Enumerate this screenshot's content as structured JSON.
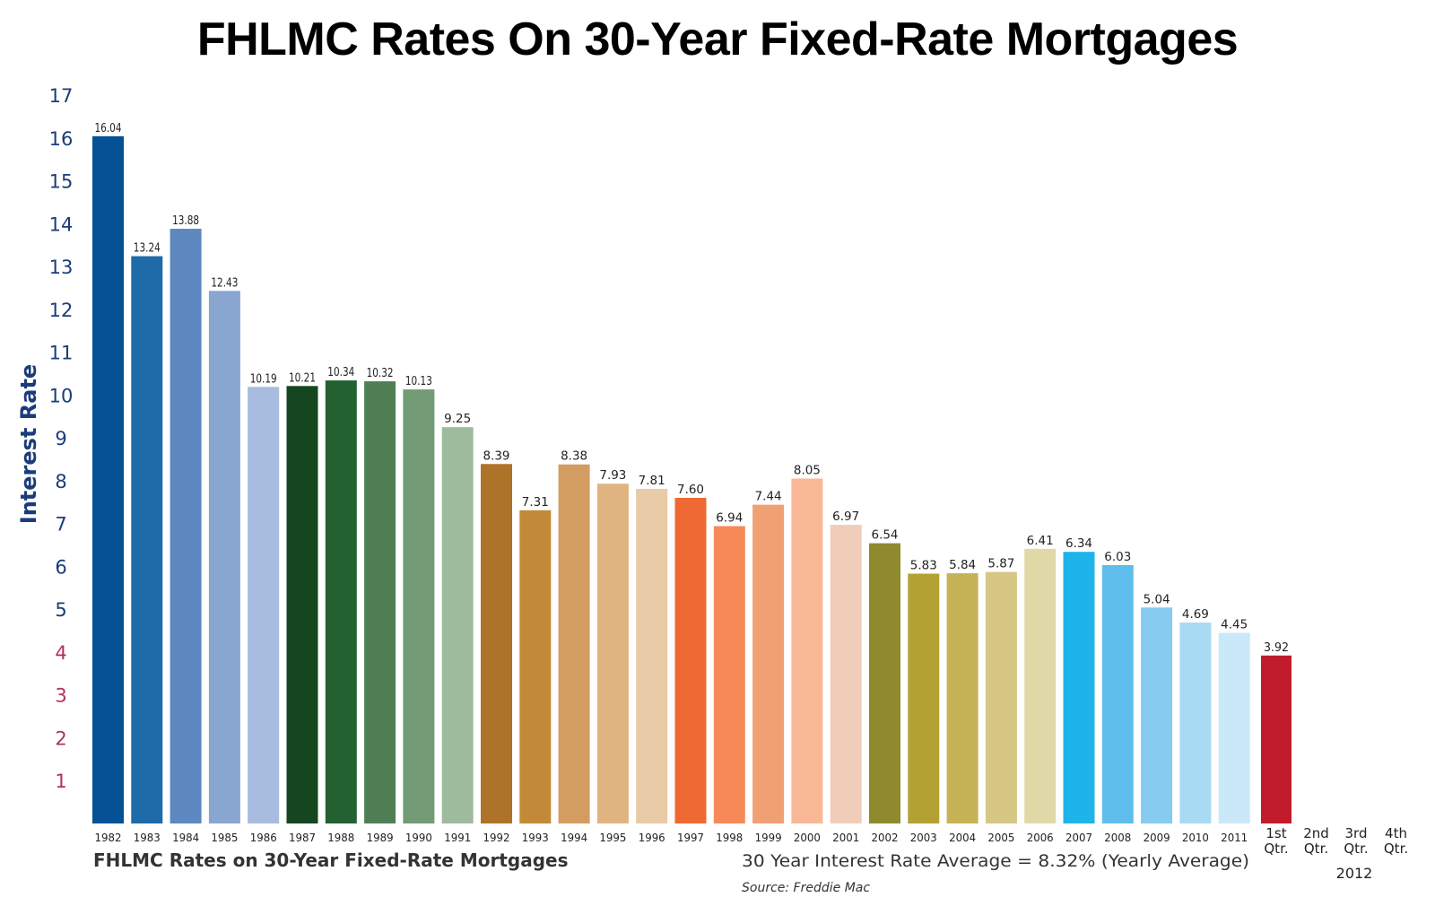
{
  "chart_data": {
    "type": "bar",
    "title": "FHLMC Rates On 30-Year Fixed-Rate Mortgages",
    "subtitle": "FHLMC Rates on 30-Year Fixed-Rate Mortgages",
    "ylabel": "Interest Rate",
    "xlabel": "",
    "ylim": [
      0,
      17
    ],
    "yticks": [
      1,
      2,
      3,
      4,
      5,
      6,
      7,
      8,
      9,
      10,
      11,
      12,
      13,
      14,
      15,
      16,
      17
    ],
    "categories": [
      "1982",
      "1983",
      "1984",
      "1985",
      "1986",
      "1987",
      "1988",
      "1989",
      "1990",
      "1991",
      "1992",
      "1993",
      "1994",
      "1995",
      "1996",
      "1997",
      "1998",
      "1999",
      "2000",
      "2001",
      "2002",
      "2003",
      "2004",
      "2005",
      "2006",
      "2007",
      "2008",
      "2009",
      "2010",
      "2011"
    ],
    "values": [
      16.04,
      13.24,
      13.88,
      12.43,
      10.19,
      10.21,
      10.34,
      10.32,
      10.13,
      9.25,
      8.39,
      7.31,
      8.38,
      7.93,
      7.81,
      7.6,
      6.94,
      7.44,
      8.05,
      6.97,
      6.54,
      5.83,
      5.84,
      5.87,
      6.41,
      6.34,
      6.03,
      5.04,
      4.69,
      4.45
    ],
    "value_labels": [
      "16.04",
      "13.24",
      "13.88",
      "12.43",
      "10.19",
      "10.21",
      "10.34",
      "10.32",
      "10.13",
      "9.25",
      "8.39",
      "7.31",
      "8.38",
      "7.93",
      "7.81",
      "7.60",
      "6.94",
      "7.44",
      "8.05",
      "6.97",
      "6.54",
      "5.83",
      "5.84",
      "5.87",
      "6.41",
      "6.34",
      "6.03",
      "5.04",
      "4.69",
      "4.45"
    ],
    "colors": [
      "#045295",
      "#1f6aa8",
      "#5d88c0",
      "#89a6d1",
      "#a7bcdf",
      "#16461f",
      "#236132",
      "#507f56",
      "#729b76",
      "#9fbb9d",
      "#ad7429",
      "#c28a38",
      "#d39d62",
      "#e0b481",
      "#e9cba7",
      "#ee6a32",
      "#f58a58",
      "#efa173",
      "#f8b896",
      "#f0cdb8",
      "#8f8a2d",
      "#b3a134",
      "#c7b357",
      "#d6c785",
      "#e1d8a7",
      "#1fb4e9",
      "#5fbdec",
      "#86cbf0",
      "#a9daf4",
      "#cbe8f8"
    ],
    "quarters": {
      "year": "2012",
      "labels": [
        [
          "1st",
          "Qtr."
        ],
        [
          "2nd",
          "Qtr."
        ],
        [
          "3rd",
          "Qtr."
        ],
        [
          "4th",
          "Qtr."
        ]
      ],
      "values": [
        3.92,
        null,
        null,
        null
      ],
      "value_labels": [
        "3.92",
        "",
        "",
        ""
      ],
      "color": "#c01c2c"
    },
    "annotations": {
      "average": "30 Year Interest Rate Average = 8.32% (Yearly Average)",
      "source": "Source: Freddie Mac"
    },
    "grid": false,
    "legend": "none"
  }
}
